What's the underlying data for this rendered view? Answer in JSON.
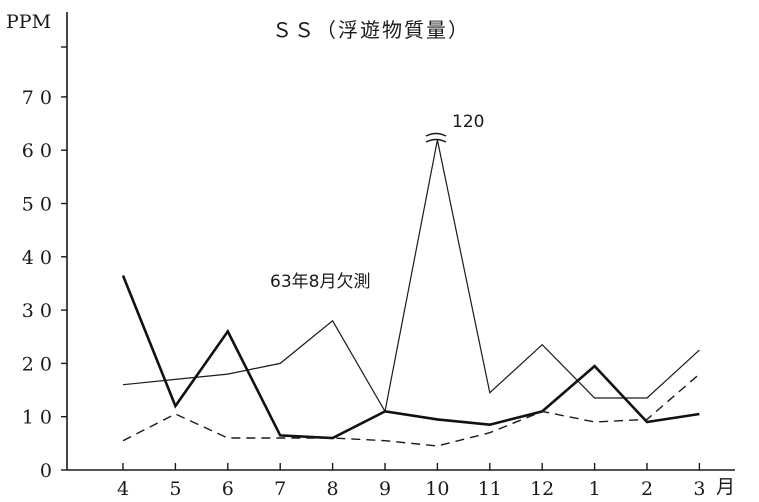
{
  "chart_data": {
    "type": "line",
    "title": "ＳＳ（浮遊物質量）",
    "ylabel": "PPM",
    "xunit": "月",
    "categories": [
      "4",
      "5",
      "6",
      "7",
      "8",
      "9",
      "10",
      "11",
      "12",
      "1",
      "2",
      "3"
    ],
    "ylim": [
      0,
      70
    ],
    "yticks": [
      0,
      10,
      20,
      30,
      40,
      50,
      60,
      70
    ],
    "ytick_labels": [
      "0",
      "1 0",
      "2 0",
      "3 0",
      "4 0",
      "5 0",
      "6 0",
      "7 0"
    ],
    "grid": false,
    "legend": "none",
    "series": [
      {
        "style": "thin-solid",
        "values": [
          16,
          17,
          18,
          20,
          28,
          11,
          120,
          14.5,
          23.5,
          13.5,
          13.5,
          22.5
        ]
      },
      {
        "style": "bold-solid",
        "values": [
          36.5,
          12,
          26,
          6.5,
          6,
          11,
          9.5,
          8.5,
          11,
          19.5,
          9,
          10.5
        ]
      },
      {
        "style": "dashed",
        "values": [
          5.5,
          10.5,
          6,
          6,
          6,
          5.5,
          4.5,
          7,
          11,
          9,
          9.5,
          18
        ]
      }
    ],
    "annotations": {
      "break_value": "120",
      "note": "63年8月欠測"
    }
  }
}
